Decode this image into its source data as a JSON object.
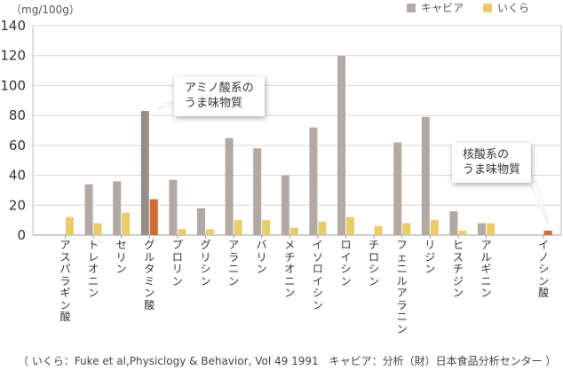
{
  "chart_data": {
    "type": "bar",
    "unit_label": "（mg/100g）",
    "categories": [
      "アスパラギン酸",
      "トレオニン",
      "セリン",
      "グルタミン酸",
      "プロリン",
      "グリシン",
      "アラニン",
      "バリン",
      "メチオニン",
      "イソロイシン",
      "ロイシン",
      "チロシン",
      "フェニルアラニン",
      "リジン",
      "ヒスチジン",
      "アルギニン",
      "イノシン酸"
    ],
    "series": [
      {
        "name": "キャビア",
        "color": "#b3a9a3",
        "values": [
          0,
          34,
          36,
          83,
          37,
          18,
          65,
          58,
          40,
          72,
          120,
          0,
          62,
          79,
          16,
          8,
          0
        ]
      },
      {
        "name": "いくら",
        "color": "#e8cc6c",
        "values": [
          12,
          8,
          15,
          24,
          4,
          4,
          10,
          10,
          5,
          9,
          12,
          6,
          8,
          10,
          3,
          8,
          3
        ]
      }
    ],
    "highlight_colors": {
      "キャビア": "#988e88",
      "いくら": "#d66a35"
    },
    "highlight_categories": [
      "グルタミン酸",
      "イノシン酸"
    ],
    "ylim": [
      0,
      140
    ],
    "yticks": [
      0,
      20,
      40,
      60,
      80,
      100,
      120,
      140
    ],
    "grid": true,
    "legend_position": "top-right",
    "annotations": [
      {
        "text_lines": [
          "アミノ酸系の",
          "うま味物質"
        ],
        "target": "グルタミン酸"
      },
      {
        "text_lines": [
          "核酸系の",
          "うま味物質"
        ],
        "target": "イノシン酸"
      }
    ],
    "source": "（ いくら：Fuke et al,Physiclogy & Behavior, Vol 49 1991　キャビア：分析（財）日本食品分析センター ）"
  }
}
